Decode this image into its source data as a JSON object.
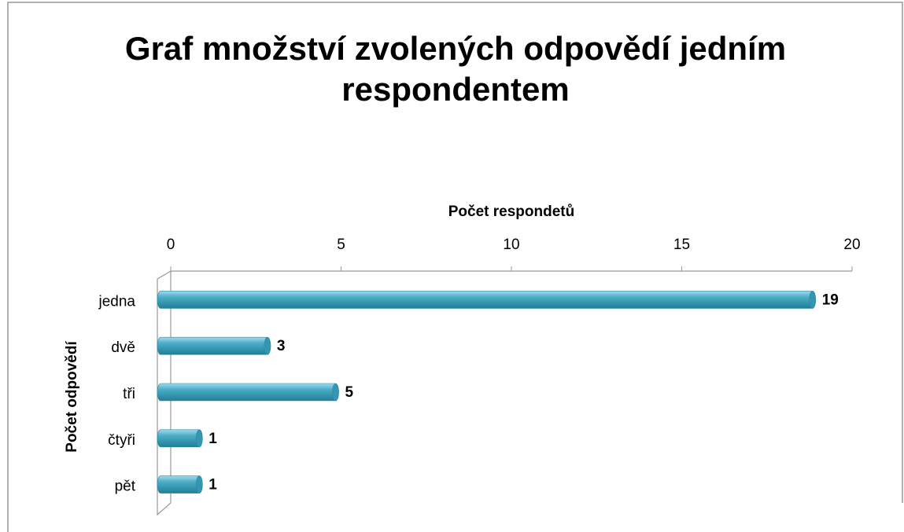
{
  "chart_data": {
    "type": "bar",
    "orientation": "horizontal",
    "title": "Graf množství zvolených odpovědí jedním respondentem",
    "x_axis_label": "Počet respondetů",
    "y_axis_label": "Počet odpovědí",
    "categories": [
      "jedna",
      "dvě",
      "tři",
      "čtyři",
      "pět"
    ],
    "values": [
      19,
      3,
      5,
      1,
      1
    ],
    "color": "#4bacc6",
    "xlim": [
      0,
      20
    ],
    "xticks": [
      0,
      5,
      10,
      15,
      20
    ],
    "grid": false
  }
}
